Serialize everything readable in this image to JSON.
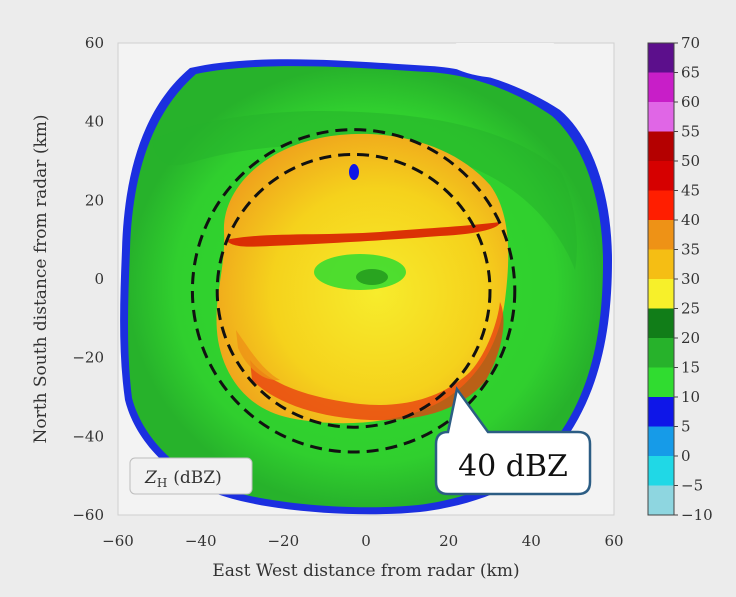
{
  "chart_data": {
    "type": "heatmap",
    "title": "",
    "xlabel": "East West distance from radar (km)",
    "ylabel": "North South distance from radar (km)",
    "xlim": [
      -60,
      60
    ],
    "ylim": [
      -60,
      60
    ],
    "xticks": [
      "−60",
      "−40",
      "−20",
      "0",
      "20",
      "40",
      "60"
    ],
    "yticks": [
      "60",
      "40",
      "20",
      "0",
      "−20",
      "−40",
      "−60"
    ],
    "variable_label_main": "Z",
    "variable_label_sub": "H",
    "variable_label_unit": "(dBZ)",
    "colorbar": {
      "ticks": [
        "70",
        "65",
        "60",
        "55",
        "50",
        "45",
        "40",
        "35",
        "30",
        "25",
        "20",
        "15",
        "10",
        "5",
        "0",
        "−5",
        "−10"
      ],
      "range": [
        -10,
        70
      ],
      "bins": [
        {
          "from": 65,
          "to": 70,
          "color": "#5c0f8c"
        },
        {
          "from": 60,
          "to": 65,
          "color": "#c81ec8"
        },
        {
          "from": 55,
          "to": 60,
          "color": "#e066e6"
        },
        {
          "from": 50,
          "to": 55,
          "color": "#b40000"
        },
        {
          "from": 45,
          "to": 50,
          "color": "#d60000"
        },
        {
          "from": 40,
          "to": 45,
          "color": "#ff1e00"
        },
        {
          "from": 35,
          "to": 40,
          "color": "#ee9216"
        },
        {
          "from": 30,
          "to": 35,
          "color": "#f5be14"
        },
        {
          "from": 25,
          "to": 30,
          "color": "#f7f02a"
        },
        {
          "from": 20,
          "to": 25,
          "color": "#117d18"
        },
        {
          "from": 15,
          "to": 20,
          "color": "#27b22b"
        },
        {
          "from": 10,
          "to": 15,
          "color": "#30dc30"
        },
        {
          "from": 5,
          "to": 10,
          "color": "#0e16e8"
        },
        {
          "from": 0,
          "to": 5,
          "color": "#169be8"
        },
        {
          "from": -5,
          "to": 0,
          "color": "#20d8e6"
        },
        {
          "from": -10,
          "to": -5,
          "color": "#8ed6e0"
        }
      ]
    },
    "rings": [
      {
        "center": [
          -3,
          -3
        ],
        "radius": 39
      },
      {
        "center": [
          -3,
          -3
        ],
        "radius": 33
      }
    ],
    "annotation": {
      "text": "40 dBZ",
      "target": [
        22,
        -28
      ]
    }
  }
}
